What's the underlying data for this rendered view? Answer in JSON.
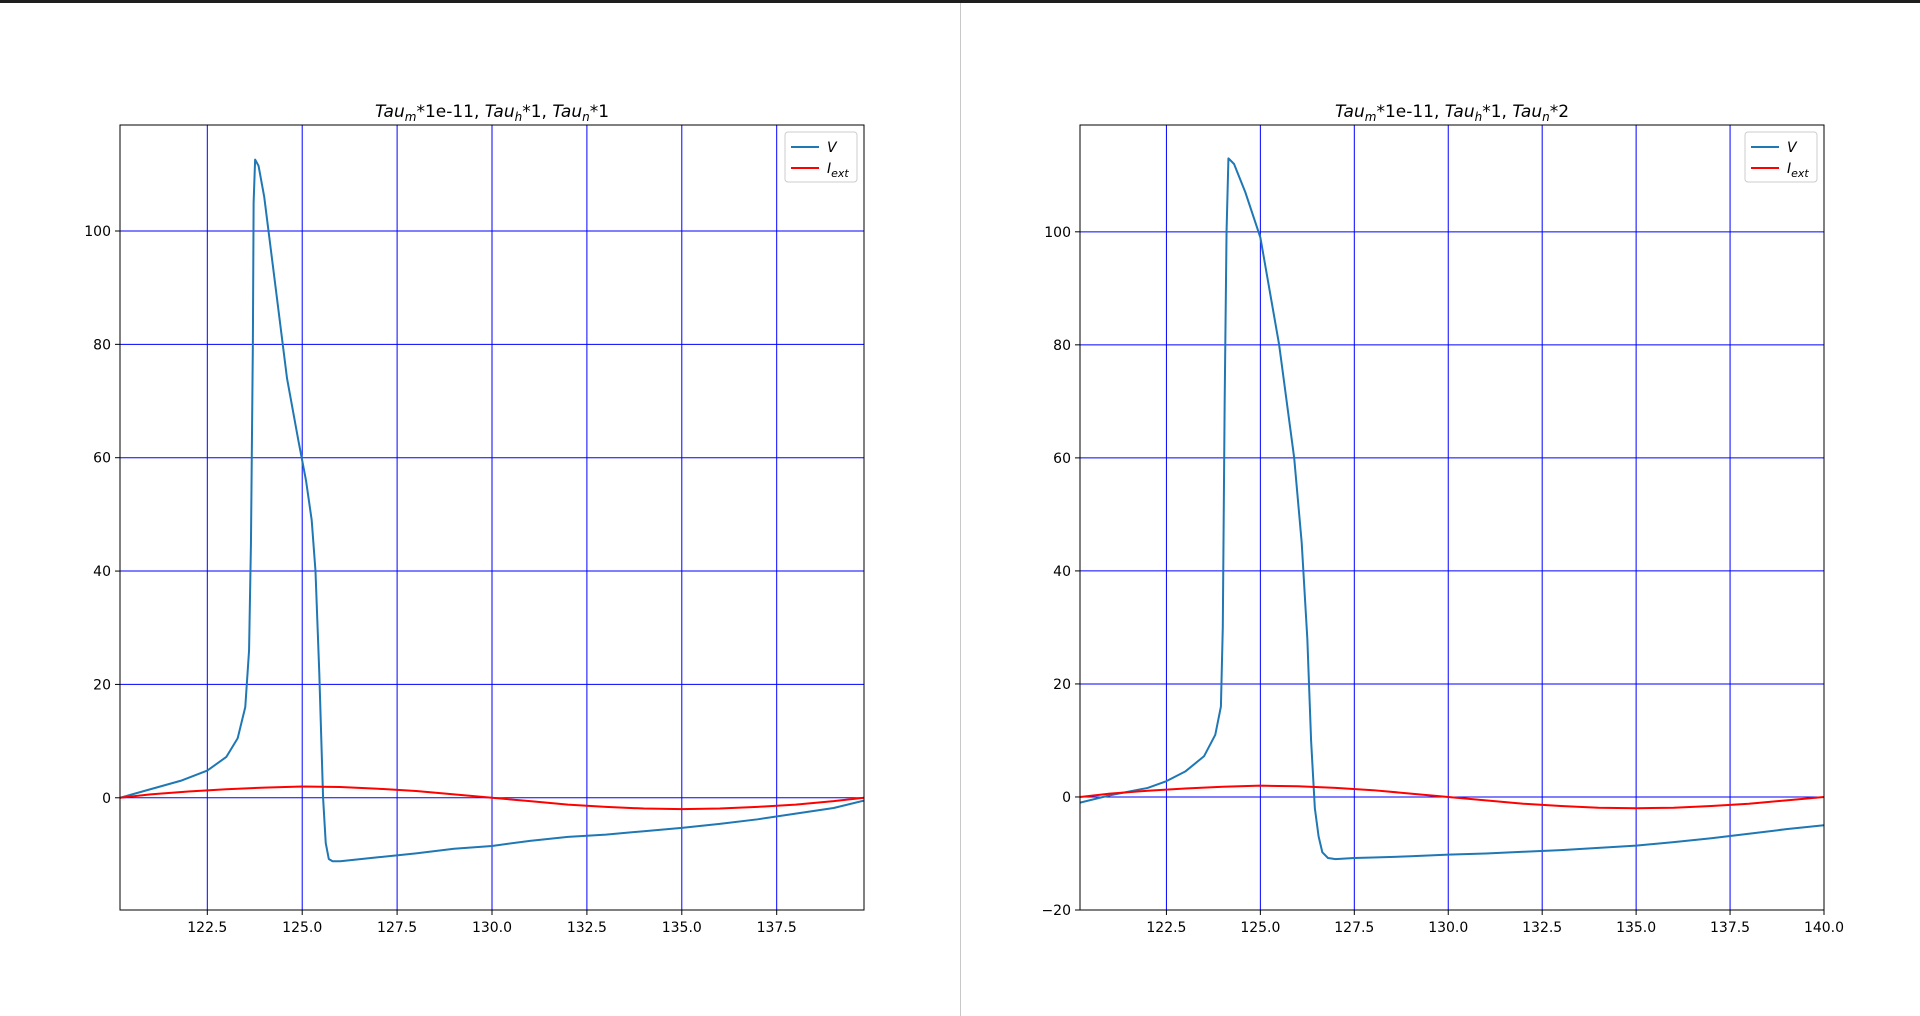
{
  "chart_data": [
    {
      "type": "line",
      "title": {
        "parts": [
          {
            "t": "Tau",
            "i": true
          },
          {
            "t": "m",
            "i": true,
            "sub": true
          },
          {
            "t": "*1e-11, "
          },
          {
            "t": "Tau",
            "i": true
          },
          {
            "t": "h",
            "i": true,
            "sub": true
          },
          {
            "t": "*1, "
          },
          {
            "t": "Tau",
            "i": true
          },
          {
            "t": "n",
            "i": true,
            "sub": true
          },
          {
            "t": "*1"
          }
        ]
      },
      "xlim": [
        120.2,
        139.8
      ],
      "ylim": [
        -19.8,
        118.7
      ],
      "xticks": [
        122.5,
        125.0,
        127.5,
        130.0,
        132.5,
        135.0,
        137.5
      ],
      "xtick_labels": [
        "122.5",
        "125.0",
        "127.5",
        "130.0",
        "132.5",
        "135.0",
        "137.5"
      ],
      "yticks": [
        0,
        20,
        40,
        60,
        80,
        100
      ],
      "ytick_labels": [
        "0",
        "20",
        "40",
        "60",
        "80",
        "100"
      ],
      "grid": true,
      "grid_color": "#0000ff",
      "legend_position": "top-right",
      "legend": [
        {
          "label": "V",
          "sub": "",
          "color": "#1f77b4"
        },
        {
          "label": "I",
          "sub": "ext",
          "color": "#ff0000"
        }
      ],
      "series": [
        {
          "name": "V",
          "color": "#1f77b4",
          "x": [
            120.2,
            121.0,
            121.8,
            122.5,
            123.0,
            123.3,
            123.5,
            123.6,
            123.65,
            123.7,
            123.72,
            123.76,
            123.85,
            124.0,
            124.3,
            124.6,
            124.9,
            125.1,
            125.25,
            125.35,
            125.45,
            125.55,
            125.62,
            125.7,
            125.8,
            126.0,
            127.0,
            128.0,
            129.0,
            130.0,
            131.0,
            132.0,
            133.0,
            134.0,
            135.0,
            136.0,
            137.0,
            138.0,
            139.0,
            139.8
          ],
          "y": [
            0.0,
            1.5,
            3.0,
            4.8,
            7.2,
            10.5,
            16.0,
            26.0,
            45.0,
            80.0,
            105.0,
            112.6,
            111.5,
            106.0,
            90.0,
            74.0,
            63.0,
            56.0,
            49.0,
            40.0,
            22.0,
            0.0,
            -8.0,
            -10.8,
            -11.2,
            -11.2,
            -10.5,
            -9.8,
            -9.0,
            -8.5,
            -7.6,
            -6.9,
            -6.5,
            -5.9,
            -5.3,
            -4.6,
            -3.8,
            -2.8,
            -1.8,
            -0.5
          ]
        },
        {
          "name": "I_ext",
          "color": "#ff0000",
          "x": [
            120.2,
            121.0,
            122.0,
            123.0,
            124.0,
            125.0,
            126.0,
            127.0,
            128.0,
            129.0,
            130.0,
            131.0,
            132.0,
            133.0,
            134.0,
            135.0,
            136.0,
            137.0,
            138.0,
            139.0,
            139.8
          ],
          "y": [
            0.0,
            0.6,
            1.1,
            1.5,
            1.8,
            2.0,
            1.9,
            1.6,
            1.2,
            0.6,
            0.0,
            -0.6,
            -1.2,
            -1.6,
            -1.9,
            -2.0,
            -1.9,
            -1.6,
            -1.2,
            -0.6,
            0.0
          ]
        }
      ]
    },
    {
      "type": "line",
      "title": {
        "parts": [
          {
            "t": "Tau",
            "i": true
          },
          {
            "t": "m",
            "i": true,
            "sub": true
          },
          {
            "t": "*1e-11, "
          },
          {
            "t": "Tau",
            "i": true
          },
          {
            "t": "h",
            "i": true,
            "sub": true
          },
          {
            "t": "*1, "
          },
          {
            "t": "Tau",
            "i": true
          },
          {
            "t": "n",
            "i": true,
            "sub": true
          },
          {
            "t": "*2"
          }
        ]
      },
      "xlim": [
        120.2,
        140.0
      ],
      "ylim": [
        -20.0,
        118.9
      ],
      "xticks": [
        122.5,
        125.0,
        127.5,
        130.0,
        132.5,
        135.0,
        137.5,
        140.0
      ],
      "xtick_labels": [
        "122.5",
        "125.0",
        "127.5",
        "130.0",
        "132.5",
        "135.0",
        "137.5",
        "140.0"
      ],
      "yticks": [
        -20,
        0,
        20,
        40,
        60,
        80,
        100
      ],
      "ytick_labels": [
        "−20",
        "0",
        "20",
        "40",
        "60",
        "80",
        "100"
      ],
      "grid": true,
      "grid_color": "#0000ff",
      "legend_position": "top-right",
      "legend": [
        {
          "label": "V",
          "sub": "",
          "color": "#1f77b4"
        },
        {
          "label": "I",
          "sub": "ext",
          "color": "#ff0000"
        }
      ],
      "series": [
        {
          "name": "V",
          "color": "#1f77b4",
          "x": [
            120.2,
            121.0,
            122.0,
            122.5,
            123.0,
            123.5,
            123.8,
            123.95,
            124.0,
            124.05,
            124.1,
            124.15,
            124.3,
            124.6,
            125.0,
            125.5,
            125.9,
            126.1,
            126.25,
            126.35,
            126.45,
            126.55,
            126.65,
            126.8,
            127.0,
            127.5,
            128.0,
            129.0,
            130.0,
            131.0,
            132.0,
            133.0,
            134.0,
            135.0,
            136.0,
            137.0,
            138.0,
            139.0,
            140.0
          ],
          "y": [
            -1.0,
            0.3,
            1.6,
            2.8,
            4.5,
            7.2,
            11.0,
            16.0,
            30.0,
            70.0,
            100.0,
            113.0,
            112.0,
            107.0,
            99.0,
            80.0,
            60.0,
            45.0,
            28.0,
            10.0,
            -2.0,
            -7.0,
            -9.8,
            -10.8,
            -11.0,
            -10.8,
            -10.7,
            -10.5,
            -10.2,
            -10.0,
            -9.7,
            -9.4,
            -9.0,
            -8.6,
            -8.0,
            -7.3,
            -6.5,
            -5.7,
            -5.0
          ]
        },
        {
          "name": "I_ext",
          "color": "#ff0000",
          "x": [
            120.2,
            121.0,
            122.0,
            123.0,
            124.0,
            125.0,
            126.0,
            127.0,
            128.0,
            129.0,
            130.0,
            131.0,
            132.0,
            133.0,
            134.0,
            135.0,
            136.0,
            137.0,
            138.0,
            139.0,
            140.0
          ],
          "y": [
            0.0,
            0.6,
            1.1,
            1.5,
            1.8,
            2.0,
            1.9,
            1.6,
            1.2,
            0.6,
            0.0,
            -0.6,
            -1.2,
            -1.6,
            -1.9,
            -2.0,
            -1.9,
            -1.6,
            -1.2,
            -0.6,
            0.0
          ]
        }
      ]
    }
  ]
}
